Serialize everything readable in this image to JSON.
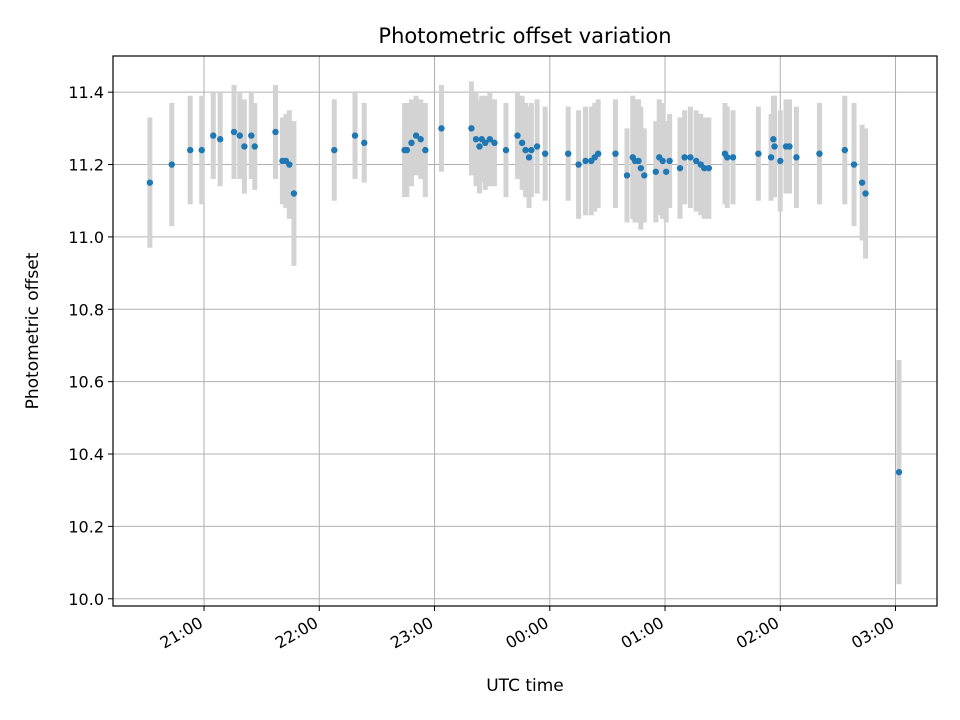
{
  "chart_data": {
    "type": "scatter",
    "title": "Photometric offset variation",
    "xlabel": "UTC time",
    "ylabel": "Photometric offset",
    "x_ticks": [
      "21:00",
      "22:00",
      "23:00",
      "00:00",
      "01:00",
      "02:00",
      "03:00"
    ],
    "x_tick_hours": [
      21,
      22,
      23,
      24,
      25,
      26,
      27
    ],
    "y_ticks": [
      "10.0",
      "10.2",
      "10.4",
      "10.6",
      "10.8",
      "11.0",
      "11.2",
      "11.4"
    ],
    "xlim_hours": [
      20.21,
      27.36
    ],
    "ylim": [
      9.98,
      11.5
    ],
    "grid": true,
    "colors": {
      "point": "#1f77b4",
      "errorbar": "#d3d3d3",
      "grid": "#b0b0b0"
    },
    "series": [
      {
        "x_hours": [
          20.53,
          20.72,
          20.88,
          20.98,
          21.08,
          21.14,
          21.26,
          21.31,
          21.35,
          21.41,
          21.44,
          21.62,
          21.68,
          21.71,
          21.74,
          21.78,
          22.13,
          22.31,
          22.39,
          22.74,
          22.76,
          22.8,
          22.84,
          22.88,
          22.92,
          23.06,
          23.32,
          23.36,
          23.39,
          23.41,
          23.44,
          23.48,
          23.52,
          23.62,
          23.72,
          23.76,
          23.79,
          23.82,
          23.84,
          23.89,
          23.96,
          24.16,
          24.25,
          24.31,
          24.36,
          24.39,
          24.42,
          24.57,
          24.67,
          24.72,
          24.74,
          24.77,
          24.79,
          24.82,
          24.92,
          24.95,
          24.98,
          25.01,
          25.04,
          25.13,
          25.17,
          25.22,
          25.27,
          25.31,
          25.34,
          25.38,
          25.52,
          25.54,
          25.59,
          25.81,
          25.92,
          25.94,
          25.95,
          26.0,
          26.05,
          26.08,
          26.14,
          26.34,
          26.56,
          26.64,
          26.71,
          26.74,
          27.03
        ],
        "y": [
          11.15,
          11.2,
          11.24,
          11.24,
          11.28,
          11.27,
          11.29,
          11.28,
          11.25,
          11.28,
          11.25,
          11.29,
          11.21,
          11.21,
          11.2,
          11.12,
          11.24,
          11.28,
          11.26,
          11.24,
          11.24,
          11.26,
          11.28,
          11.27,
          11.24,
          11.3,
          11.3,
          11.27,
          11.25,
          11.27,
          11.26,
          11.27,
          11.26,
          11.24,
          11.28,
          11.26,
          11.24,
          11.22,
          11.24,
          11.25,
          11.23,
          11.23,
          11.2,
          11.21,
          11.21,
          11.22,
          11.23,
          11.23,
          11.17,
          11.22,
          11.21,
          11.21,
          11.19,
          11.17,
          11.18,
          11.22,
          11.21,
          11.18,
          11.21,
          11.19,
          11.22,
          11.22,
          11.21,
          11.2,
          11.19,
          11.19,
          11.23,
          11.22,
          11.22,
          11.23,
          11.22,
          11.27,
          11.25,
          11.21,
          11.25,
          11.25,
          11.22,
          11.23,
          11.24,
          11.2,
          11.15,
          11.12,
          10.35
        ],
        "err": [
          0.18,
          0.17,
          0.15,
          0.15,
          0.12,
          0.13,
          0.13,
          0.12,
          0.13,
          0.12,
          0.12,
          0.13,
          0.12,
          0.13,
          0.15,
          0.2,
          0.14,
          0.12,
          0.11,
          0.13,
          0.13,
          0.12,
          0.11,
          0.11,
          0.13,
          0.12,
          0.13,
          0.13,
          0.13,
          0.12,
          0.13,
          0.13,
          0.12,
          0.13,
          0.12,
          0.13,
          0.13,
          0.14,
          0.13,
          0.13,
          0.13,
          0.13,
          0.15,
          0.15,
          0.15,
          0.15,
          0.15,
          0.15,
          0.13,
          0.17,
          0.17,
          0.17,
          0.17,
          0.13,
          0.14,
          0.16,
          0.16,
          0.14,
          0.13,
          0.14,
          0.13,
          0.14,
          0.14,
          0.14,
          0.14,
          0.14,
          0.14,
          0.14,
          0.13,
          0.13,
          0.12,
          0.12,
          0.14,
          0.14,
          0.13,
          0.13,
          0.14,
          0.14,
          0.15,
          0.17,
          0.16,
          0.18,
          0.31
        ]
      }
    ]
  }
}
